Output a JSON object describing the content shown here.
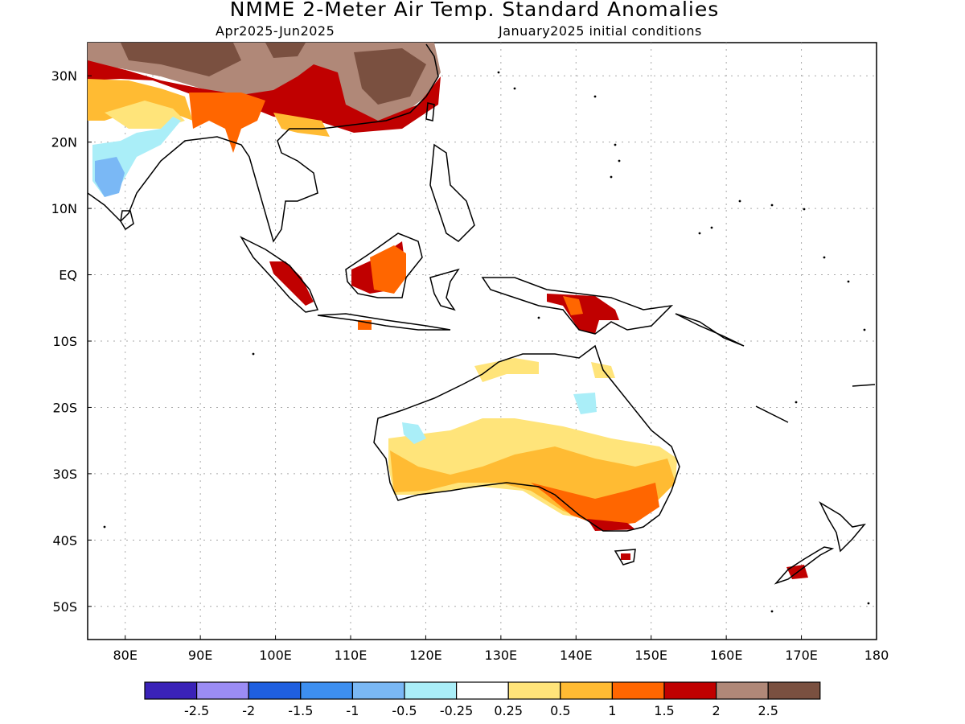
{
  "title": "NMME 2-Meter Air Temp. Standard Anomalies",
  "subtitle_left": "Apr2025-Jun2025",
  "subtitle_right": "January2025 initial conditions",
  "lon_ticks": [
    "80E",
    "90E",
    "100E",
    "110E",
    "120E",
    "130E",
    "140E",
    "150E",
    "160E",
    "170E",
    "180"
  ],
  "lat_ticks": [
    "30N",
    "20N",
    "10N",
    "EQ",
    "10S",
    "20S",
    "30S",
    "40S",
    "50S"
  ],
  "colorbar": {
    "colors": [
      "#3a22b8",
      "#9b8cf5",
      "#1f5fe0",
      "#3d8ff0",
      "#7ab8f5",
      "#aaeef8",
      "#ffffff",
      "#ffe47a",
      "#ffbb33",
      "#ff6600",
      "#c00000",
      "#b08878",
      "#7a5040"
    ],
    "labels": [
      "-2.5",
      "-2",
      "-1.5",
      "-1",
      "-0.5",
      "-0.25",
      "0.25",
      "0.5",
      "1",
      "1.5",
      "2",
      "2.5"
    ]
  }
}
